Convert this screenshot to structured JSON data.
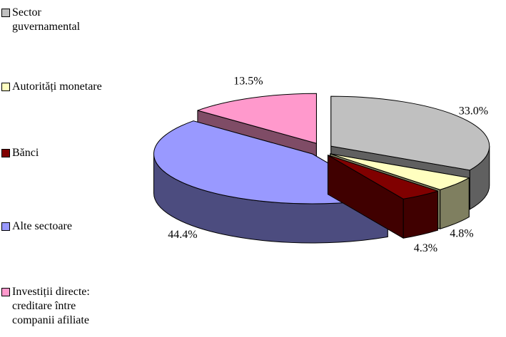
{
  "chart_data": {
    "type": "pie3d",
    "categories": [
      "Sector guvernamental",
      "Autorități monetare",
      "Bănci",
      "Alte sectoare",
      "Investiții directe: creditare între companii afiliate"
    ],
    "values": [
      33.0,
      4.8,
      4.3,
      44.4,
      13.5
    ],
    "value_labels": [
      "33.0%",
      "4.8%",
      "4.3%",
      "44.4%",
      "13.5%"
    ],
    "colors": [
      "#c0c0c0",
      "#ffffc0",
      "#800000",
      "#9999ff",
      "#ff99cc"
    ],
    "legend": "left"
  }
}
